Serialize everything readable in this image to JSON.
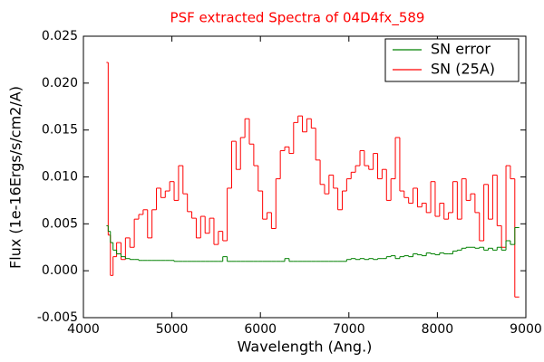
{
  "chart_data": {
    "type": "step",
    "title": "PSF extracted Spectra of 04D4fx_589",
    "x_label": "Wavelength (Ang.)",
    "y_label": "Flux (1e-16Ergs/s/cm2/A)",
    "xlim": [
      4000,
      9000
    ],
    "xticks": [
      4000,
      5000,
      6000,
      7000,
      8000,
      9000
    ],
    "ylim": [
      -0.005,
      0.025
    ],
    "yticks": [
      -0.005,
      {
        "value": 0,
        "label": "0.000"
      },
      0.005,
      {
        "value": 0.01,
        "label": "0.010"
      },
      0.015,
      {
        "value": 0.02,
        "label": "0.020"
      },
      0.025
    ],
    "legend": "upper right",
    "x": [
      4270,
      4290,
      4320,
      4350,
      4400,
      4450,
      4500,
      4550,
      4600,
      4650,
      4700,
      4750,
      4800,
      4850,
      4900,
      4950,
      5000,
      5050,
      5100,
      5150,
      5200,
      5250,
      5300,
      5350,
      5400,
      5450,
      5500,
      5550,
      5600,
      5650,
      5700,
      5750,
      5800,
      5850,
      5900,
      5950,
      6000,
      6050,
      6100,
      6150,
      6200,
      6250,
      6300,
      6350,
      6400,
      6450,
      6500,
      6550,
      6600,
      6650,
      6700,
      6750,
      6800,
      6850,
      6900,
      6950,
      7000,
      7050,
      7100,
      7150,
      7200,
      7250,
      7300,
      7350,
      7400,
      7450,
      7500,
      7550,
      7600,
      7650,
      7700,
      7750,
      7800,
      7850,
      7900,
      7950,
      8000,
      8050,
      8100,
      8150,
      8200,
      8250,
      8300,
      8350,
      8400,
      8450,
      8500,
      8550,
      8600,
      8650,
      8700,
      8750,
      8800,
      8850,
      8900
    ],
    "series": [
      {
        "name": "SN error",
        "color": "#008000",
        "values": [
          0.0048,
          0.0042,
          0.003,
          0.0022,
          0.0018,
          0.0015,
          0.0013,
          0.0012,
          0.0012,
          0.0011,
          0.0011,
          0.0011,
          0.0011,
          0.0011,
          0.0011,
          0.0011,
          0.0011,
          0.001,
          0.001,
          0.001,
          0.001,
          0.001,
          0.001,
          0.001,
          0.001,
          0.001,
          0.001,
          0.001,
          0.0015,
          0.001,
          0.001,
          0.001,
          0.001,
          0.001,
          0.001,
          0.001,
          0.001,
          0.001,
          0.001,
          0.001,
          0.001,
          0.001,
          0.0013,
          0.001,
          0.001,
          0.001,
          0.001,
          0.001,
          0.001,
          0.001,
          0.001,
          0.001,
          0.001,
          0.001,
          0.001,
          0.001,
          0.0012,
          0.0013,
          0.0012,
          0.0013,
          0.0012,
          0.0013,
          0.0012,
          0.0013,
          0.0013,
          0.0015,
          0.0016,
          0.0013,
          0.0015,
          0.0016,
          0.0015,
          0.0018,
          0.0017,
          0.0016,
          0.0019,
          0.0018,
          0.0017,
          0.0019,
          0.0018,
          0.0018,
          0.0021,
          0.0022,
          0.0024,
          0.0025,
          0.0025,
          0.0024,
          0.0025,
          0.0022,
          0.0024,
          0.0022,
          0.0025,
          0.0022,
          0.0032,
          0.0028,
          0.0046
        ]
      },
      {
        "name": "SN (25A)",
        "color": "#ff0000",
        "values": [
          0.0222,
          0.0038,
          -0.0005,
          0.0015,
          0.003,
          0.0012,
          0.0035,
          0.0025,
          0.0055,
          0.006,
          0.0065,
          0.0035,
          0.0065,
          0.0088,
          0.0078,
          0.0085,
          0.0095,
          0.0075,
          0.0112,
          0.0082,
          0.0063,
          0.0056,
          0.0035,
          0.0058,
          0.004,
          0.0056,
          0.0028,
          0.0042,
          0.0032,
          0.0088,
          0.0138,
          0.0108,
          0.0142,
          0.0162,
          0.0135,
          0.0112,
          0.0085,
          0.0055,
          0.0062,
          0.0045,
          0.0098,
          0.0128,
          0.0132,
          0.0125,
          0.0158,
          0.0165,
          0.0148,
          0.0162,
          0.0152,
          0.0118,
          0.0092,
          0.0082,
          0.0102,
          0.0088,
          0.0065,
          0.0085,
          0.0098,
          0.0105,
          0.0112,
          0.0128,
          0.0112,
          0.0108,
          0.0125,
          0.0098,
          0.0108,
          0.0075,
          0.0098,
          0.0142,
          0.0085,
          0.0078,
          0.0072,
          0.0088,
          0.0068,
          0.0072,
          0.0062,
          0.0095,
          0.0058,
          0.0072,
          0.0055,
          0.0062,
          0.0095,
          0.0055,
          0.0098,
          0.0075,
          0.0082,
          0.0062,
          0.0032,
          0.0092,
          0.0055,
          0.0102,
          0.0048,
          0.0025,
          0.0112,
          0.0098,
          -0.0028
        ]
      }
    ]
  }
}
